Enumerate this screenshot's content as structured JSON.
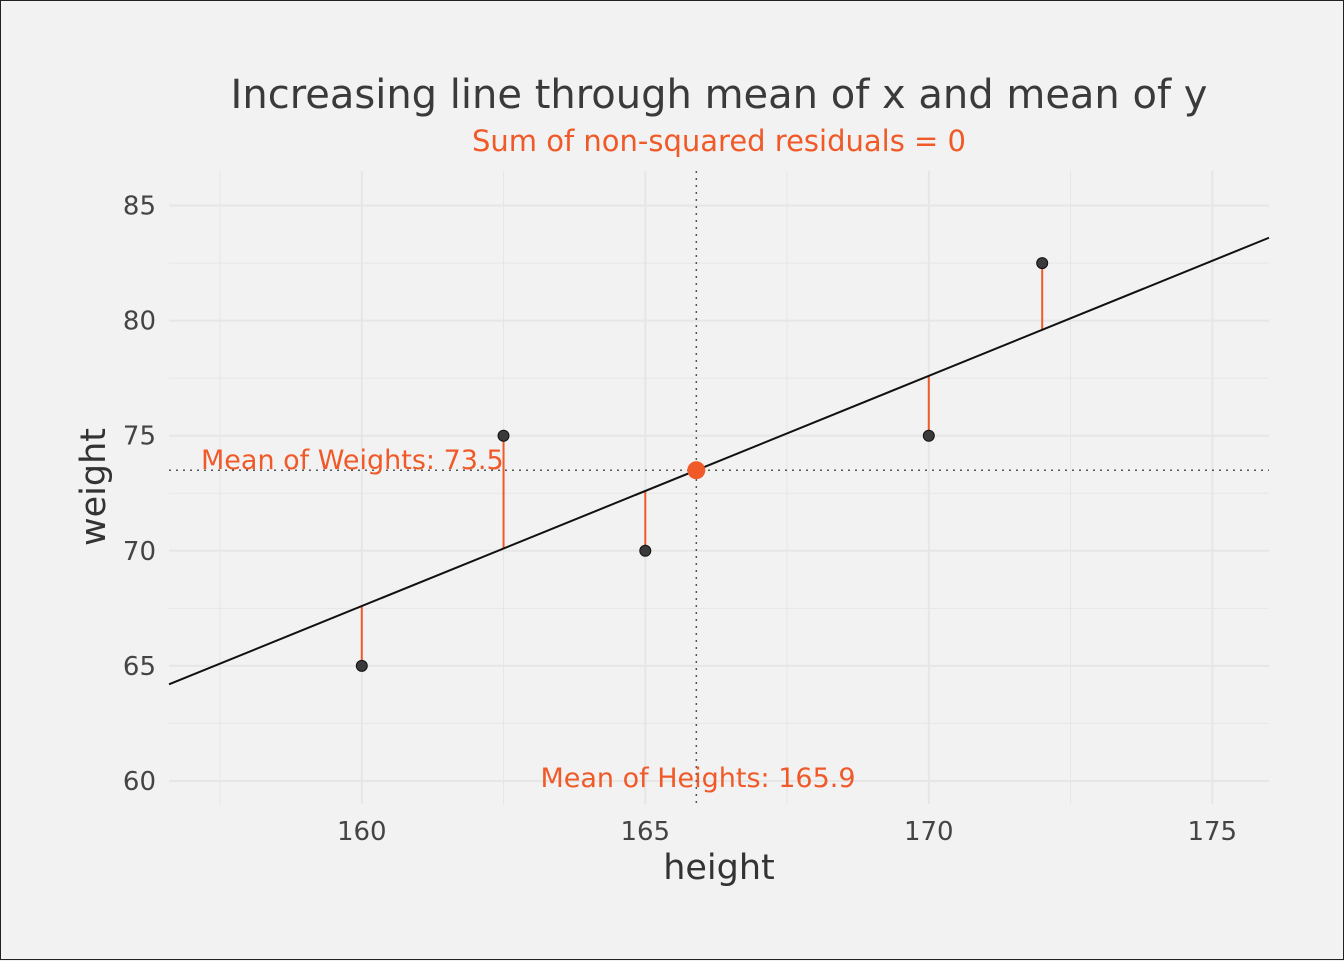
{
  "chart_data": {
    "type": "scatter",
    "title": "Increasing line through mean of x and mean of y",
    "subtitle": "Sum of non-squared residuals = 0",
    "xlabel": "height",
    "ylabel": "weight",
    "xlim": [
      156.6,
      176.0
    ],
    "ylim": [
      59.0,
      86.5
    ],
    "x_ticks": [
      160,
      165,
      170,
      175
    ],
    "y_ticks": [
      60,
      65,
      70,
      75,
      80,
      85
    ],
    "grid": true,
    "points": [
      {
        "x": 160,
        "y": 65
      },
      {
        "x": 162.5,
        "y": 75
      },
      {
        "x": 165,
        "y": 70
      },
      {
        "x": 170,
        "y": 75
      },
      {
        "x": 172,
        "y": 82.5
      }
    ],
    "mean_point": {
      "x": 165.9,
      "y": 73.5
    },
    "fit_line": {
      "slope": 1.0,
      "intercept": -92.4
    },
    "annotations": {
      "mean_y_label": "Mean of Weights: 73.5",
      "mean_x_label": "Mean of Heights: 165.9"
    },
    "colors": {
      "accent": "#f05a28",
      "points": "#3a3a3a",
      "line": "#111111",
      "grid": "#e6e6e6",
      "background": "#f2f2f2"
    }
  }
}
